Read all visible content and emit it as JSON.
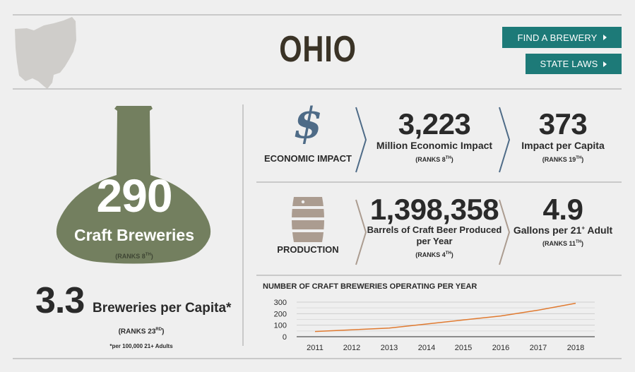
{
  "header": {
    "state_name": "OHIO",
    "find_brewery_label": "FIND A BREWERY",
    "state_laws_label": "STATE LAWS"
  },
  "breweries": {
    "count": "290",
    "label": "Craft Breweries",
    "rank_prefix": "(RANKS 8",
    "rank_sup": "TH",
    "rank_suffix": ")"
  },
  "per_capita": {
    "value": "3.3",
    "label": "Breweries per Capita*",
    "rank_prefix": "(RANKS 23",
    "rank_sup": "RD",
    "rank_suffix": ")",
    "footnote": "*per 100,000 21+ Adults"
  },
  "economic": {
    "category": "ECONOMIC IMPACT",
    "impact_value": "3,223",
    "impact_label": "Million Economic Impact",
    "impact_rank_prefix": "(RANKS 8",
    "impact_rank_sup": "TH",
    "impact_rank_suffix": ")",
    "capita_value": "373",
    "capita_label": "Impact per Capita",
    "capita_rank_prefix": "(RANKS 19",
    "capita_rank_sup": "TH",
    "capita_rank_suffix": ")"
  },
  "production": {
    "category": "PRODUCTION",
    "barrels_value": "1,398,358",
    "barrels_label_line1": "Barrels of Craft Beer Produced",
    "barrels_label_line2": "per Year",
    "barrels_rank_prefix": "(RANKS 4",
    "barrels_rank_sup": "TH",
    "barrels_rank_suffix": ")",
    "gallons_value": "4.9",
    "gallons_label_prefix": "Gallons per 21",
    "gallons_label_sup": "+",
    "gallons_label_suffix": " Adult",
    "gallons_rank_prefix": "(RANKS 11",
    "gallons_rank_sup": "TH",
    "gallons_rank_suffix": ")"
  },
  "colors": {
    "teal": "#1d7a78",
    "bottle": "#737f5f",
    "line": "#e07a30",
    "dollar": "#4e6b87"
  },
  "icons": [
    "ohio-map-icon",
    "bottle-icon",
    "dollar-icon",
    "barrel-icon",
    "chevron-right-icon"
  ],
  "chart_data": {
    "type": "line",
    "title": "NUMBER OF CRAFT BREWERIES OPERATING PER YEAR",
    "categories": [
      "2011",
      "2012",
      "2013",
      "2014",
      "2015",
      "2016",
      "2017",
      "2018"
    ],
    "series": [
      {
        "values": [
          45,
          60,
          75,
          110,
          145,
          180,
          230,
          290
        ]
      }
    ],
    "ylim": [
      0,
      300
    ],
    "yticks": [
      "0",
      "100",
      "200",
      "300"
    ],
    "yticks_minor": [
      50,
      150,
      250
    ],
    "grid": true
  }
}
